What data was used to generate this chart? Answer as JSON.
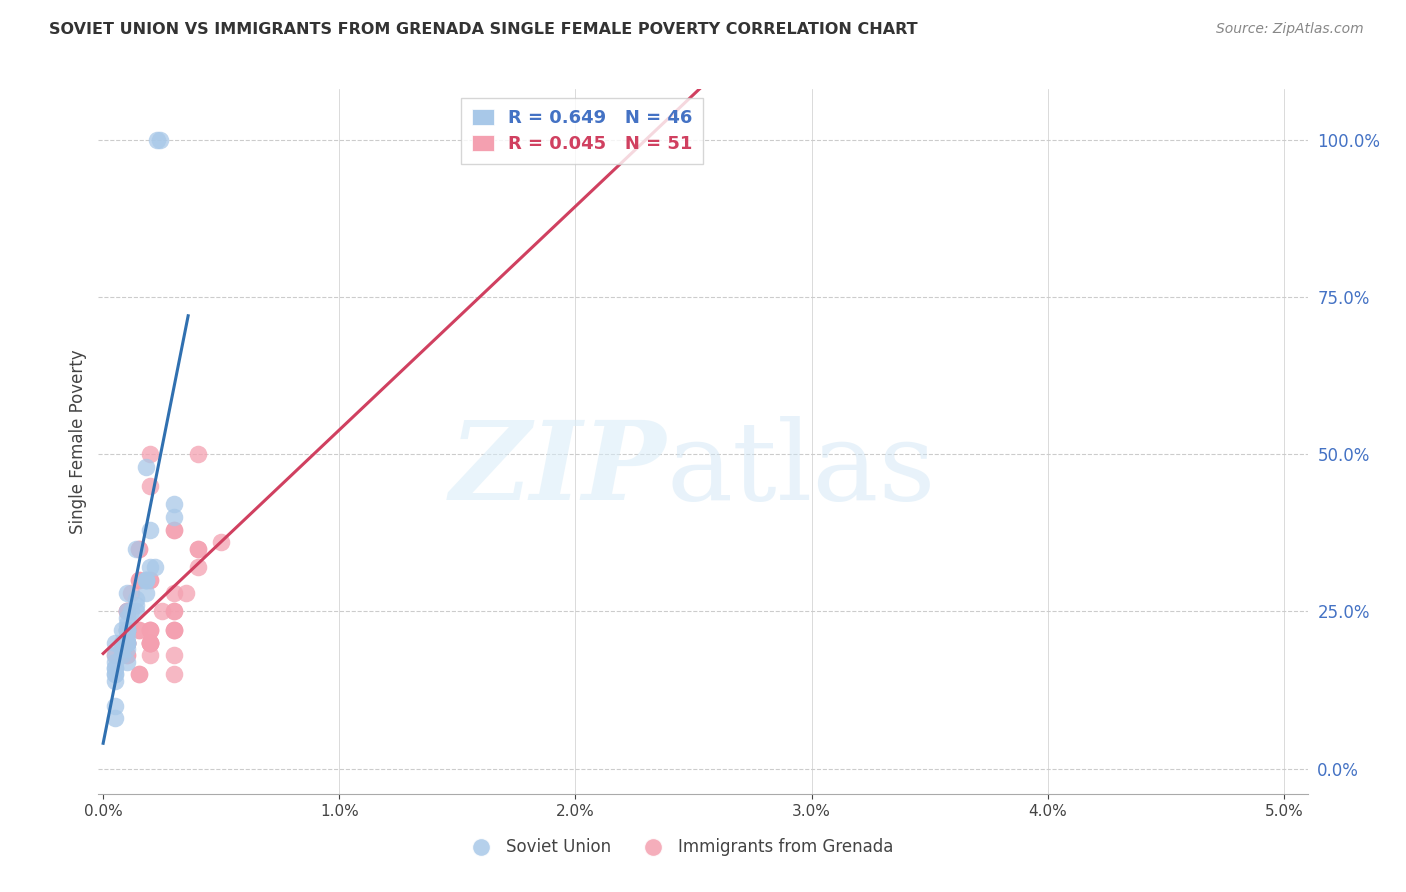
{
  "title": "SOVIET UNION VS IMMIGRANTS FROM GRENADA SINGLE FEMALE POVERTY CORRELATION CHART",
  "source": "Source: ZipAtlas.com",
  "ylabel": "Single Female Poverty",
  "right_yticks": [
    0.0,
    0.25,
    0.5,
    0.75,
    1.0
  ],
  "right_yticklabels": [
    "0.0%",
    "25.0%",
    "50.0%",
    "75.0%",
    "100.0%"
  ],
  "xlim": [
    -0.0002,
    0.051
  ],
  "ylim": [
    -0.04,
    1.08
  ],
  "legend_blue_R": "R = 0.649",
  "legend_blue_N": "N = 46",
  "legend_pink_R": "R = 0.045",
  "legend_pink_N": "N = 51",
  "blue_color": "#a8c8e8",
  "pink_color": "#f4a0b0",
  "blue_line_color": "#3070b0",
  "pink_line_color": "#d04060",
  "soviet_x": [
    0.001,
    0.001,
    0.0018,
    0.001,
    0.0008,
    0.0005,
    0.0008,
    0.001,
    0.0014,
    0.002,
    0.003,
    0.001,
    0.0005,
    0.001,
    0.002,
    0.0014,
    0.001,
    0.003,
    0.0018,
    0.0005,
    0.0008,
    0.001,
    0.0012,
    0.0005,
    0.001,
    0.0018,
    0.0005,
    0.001,
    0.0014,
    0.0005,
    0.0008,
    0.001,
    0.0014,
    0.0005,
    0.001,
    0.0018,
    0.0022,
    0.001,
    0.0005,
    0.0018,
    0.0023,
    0.0024,
    0.001,
    0.001,
    0.0005,
    0.0005
  ],
  "soviet_y": [
    0.22,
    0.25,
    0.3,
    0.2,
    0.18,
    0.2,
    0.22,
    0.24,
    0.35,
    0.38,
    0.4,
    0.28,
    0.15,
    0.2,
    0.32,
    0.25,
    0.19,
    0.42,
    0.3,
    0.17,
    0.2,
    0.22,
    0.25,
    0.18,
    0.21,
    0.28,
    0.15,
    0.22,
    0.26,
    0.16,
    0.19,
    0.23,
    0.27,
    0.14,
    0.2,
    0.3,
    0.32,
    0.2,
    0.16,
    0.48,
    1.0,
    1.0,
    0.22,
    0.17,
    0.1,
    0.08
  ],
  "grenada_x": [
    0.001,
    0.0015,
    0.002,
    0.001,
    0.0008,
    0.0012,
    0.0015,
    0.002,
    0.003,
    0.002,
    0.001,
    0.0005,
    0.001,
    0.0015,
    0.003,
    0.002,
    0.0025,
    0.001,
    0.0015,
    0.002,
    0.003,
    0.004,
    0.003,
    0.002,
    0.0015,
    0.001,
    0.003,
    0.002,
    0.0015,
    0.001,
    0.002,
    0.003,
    0.0035,
    0.002,
    0.001,
    0.0015,
    0.002,
    0.003,
    0.004,
    0.005,
    0.001,
    0.002,
    0.003,
    0.004,
    0.003,
    0.002,
    0.001,
    0.0015,
    0.002,
    0.003,
    0.004
  ],
  "grenada_y": [
    0.25,
    0.3,
    0.5,
    0.22,
    0.2,
    0.28,
    0.35,
    0.45,
    0.38,
    0.22,
    0.2,
    0.18,
    0.25,
    0.3,
    0.28,
    0.22,
    0.25,
    0.2,
    0.35,
    0.3,
    0.38,
    0.32,
    0.18,
    0.2,
    0.22,
    0.25,
    0.15,
    0.2,
    0.22,
    0.18,
    0.2,
    0.22,
    0.28,
    0.3,
    0.2,
    0.15,
    0.18,
    0.25,
    0.35,
    0.36,
    0.2,
    0.22,
    0.25,
    0.5,
    0.22,
    0.2,
    0.18,
    0.15,
    0.2,
    0.22,
    0.35
  ]
}
